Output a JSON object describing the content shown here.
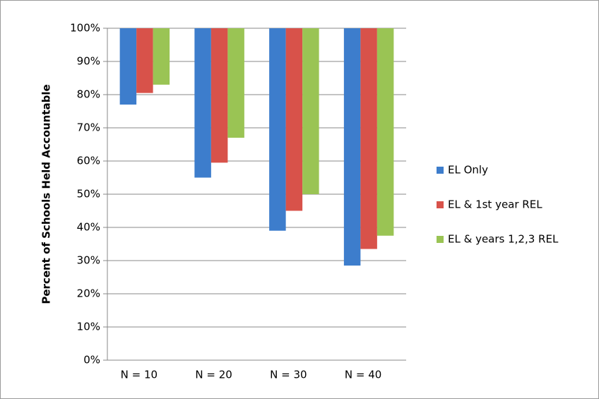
{
  "chart_data": {
    "type": "bar",
    "y_label": "Percent of Schools Held Accountable",
    "categories": [
      "N = 10",
      "N = 20",
      "N = 30",
      "N = 40"
    ],
    "series": [
      {
        "name": "EL Only",
        "color": "#3d7dcc",
        "values": [
          77,
          55,
          39,
          28.5
        ]
      },
      {
        "name": "EL & 1st year REL",
        "color": "#d8524a",
        "values": [
          80.5,
          59.5,
          45,
          33.5
        ]
      },
      {
        "name": "EL & years 1,2,3 REL",
        "color": "#9ac454",
        "values": [
          83,
          67,
          50,
          37.5
        ]
      }
    ],
    "ylim": [
      0,
      100
    ],
    "yticks": [
      {
        "value": 0,
        "label": "0%"
      },
      {
        "value": 10,
        "label": "10%"
      },
      {
        "value": 20,
        "label": "20%"
      },
      {
        "value": 30,
        "label": "30%"
      },
      {
        "value": 40,
        "label": "40%"
      },
      {
        "value": 50,
        "label": "50%"
      },
      {
        "value": 60,
        "label": "60%"
      },
      {
        "value": 70,
        "label": "70%"
      },
      {
        "value": 80,
        "label": "80%"
      },
      {
        "value": 90,
        "label": "90%"
      },
      {
        "value": 100,
        "label": "100%"
      }
    ],
    "grid": true,
    "x_axis_at_max": true,
    "legend": "right"
  }
}
